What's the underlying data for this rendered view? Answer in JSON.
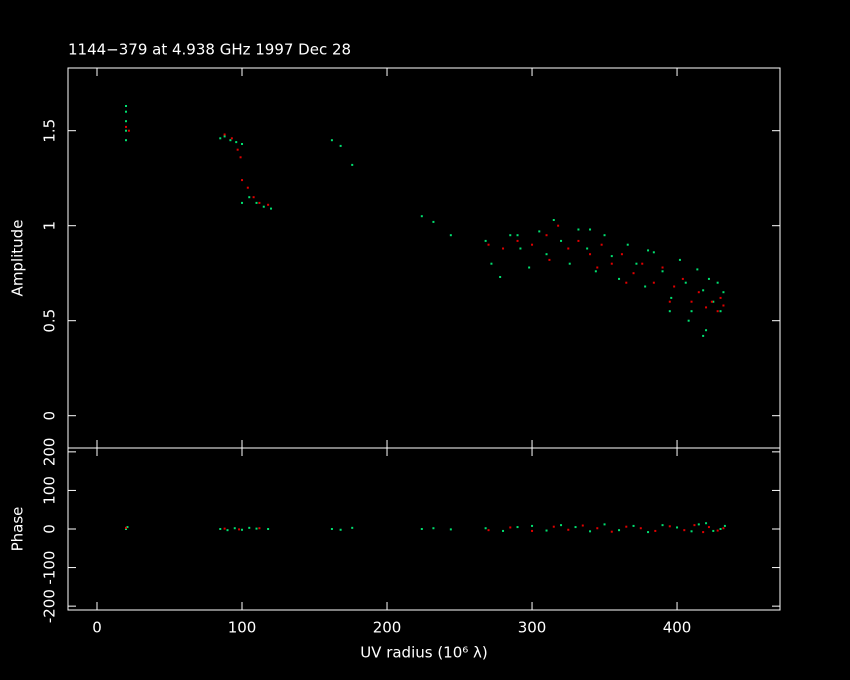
{
  "chart_data": [
    {
      "type": "scatter",
      "title": "1144−379 at 4.938 GHz 1997 Dec 28",
      "y_label": "Amplitude",
      "xlim": [
        -20,
        471
      ],
      "xticks": [
        0,
        100,
        200,
        300,
        400
      ],
      "ylim": [
        -0.17,
        1.83
      ],
      "yticks": [
        0,
        0.5,
        1,
        1.5
      ],
      "series": [
        {
          "color": "#00e070",
          "x": [
            20,
            20,
            20,
            20,
            20,
            85,
            88,
            92,
            96,
            100,
            100,
            105,
            110,
            115,
            120,
            162,
            168,
            176,
            224,
            232,
            244,
            268,
            272,
            278,
            285,
            292,
            298,
            305,
            310,
            315,
            320,
            326,
            332,
            338,
            344,
            350,
            355,
            360,
            366,
            372,
            378,
            384,
            390,
            396,
            402,
            406,
            410,
            414,
            418,
            420,
            422,
            425,
            428,
            430,
            432,
            418,
            408,
            395,
            290,
            340,
            380
          ],
          "values": [
            1.45,
            1.5,
            1.55,
            1.6,
            1.63,
            1.46,
            1.47,
            1.45,
            1.44,
            1.43,
            1.12,
            1.15,
            1.12,
            1.1,
            1.09,
            1.45,
            1.42,
            1.32,
            1.05,
            1.02,
            0.95,
            0.92,
            0.8,
            0.73,
            0.95,
            0.88,
            0.78,
            0.97,
            0.85,
            1.03,
            0.92,
            0.8,
            0.98,
            0.88,
            0.76,
            0.95,
            0.84,
            0.72,
            0.9,
            0.8,
            0.68,
            0.86,
            0.76,
            0.62,
            0.82,
            0.7,
            0.55,
            0.77,
            0.66,
            0.45,
            0.72,
            0.6,
            0.7,
            0.55,
            0.65,
            0.42,
            0.5,
            0.55,
            0.95,
            0.98,
            0.87
          ]
        },
        {
          "color": "#e00000",
          "x": [
            20,
            22,
            88,
            93,
            97,
            99,
            100,
            104,
            108,
            112,
            118,
            270,
            280,
            290,
            300,
            310,
            318,
            325,
            332,
            340,
            348,
            355,
            362,
            370,
            376,
            384,
            390,
            398,
            404,
            410,
            415,
            420,
            424,
            428,
            430,
            432,
            365,
            345,
            395,
            312
          ],
          "values": [
            1.52,
            1.5,
            1.48,
            1.46,
            1.4,
            1.36,
            1.24,
            1.2,
            1.15,
            1.12,
            1.11,
            0.9,
            0.88,
            0.92,
            0.9,
            0.95,
            1.0,
            0.88,
            0.92,
            0.85,
            0.9,
            0.8,
            0.85,
            0.75,
            0.8,
            0.7,
            0.78,
            0.68,
            0.72,
            0.6,
            0.65,
            0.57,
            0.6,
            0.55,
            0.62,
            0.58,
            0.7,
            0.78,
            0.6,
            0.82
          ]
        }
      ]
    },
    {
      "type": "scatter",
      "x_label": "UV radius  (10⁶ λ)",
      "y_label": "Phase",
      "xlim": [
        -20,
        471
      ],
      "xticks": [
        0,
        100,
        200,
        300,
        400
      ],
      "ylim": [
        -210,
        210
      ],
      "yticks": [
        -200,
        -100,
        0,
        100,
        200
      ],
      "series": [
        {
          "color": "#00e070",
          "x": [
            20,
            21,
            85,
            90,
            95,
            100,
            105,
            110,
            118,
            162,
            168,
            176,
            224,
            232,
            244,
            268,
            280,
            290,
            300,
            310,
            320,
            330,
            340,
            350,
            360,
            370,
            380,
            390,
            400,
            410,
            415,
            420,
            425,
            430,
            433
          ],
          "values": [
            0,
            5,
            0,
            -3,
            2,
            -2,
            3,
            1,
            0,
            0,
            -2,
            3,
            0,
            2,
            -1,
            2,
            -5,
            5,
            8,
            -4,
            10,
            5,
            -6,
            12,
            -3,
            8,
            -8,
            10,
            4,
            -6,
            12,
            15,
            -5,
            0,
            8
          ]
        },
        {
          "color": "#e00000",
          "x": [
            20,
            88,
            98,
            112,
            270,
            285,
            300,
            315,
            325,
            335,
            345,
            355,
            365,
            375,
            385,
            395,
            405,
            412,
            418,
            422,
            428,
            432
          ],
          "values": [
            3,
            1,
            -1,
            2,
            -3,
            4,
            -5,
            6,
            -2,
            9,
            2,
            -7,
            6,
            2,
            -5,
            7,
            -3,
            10,
            -8,
            5,
            -4,
            2
          ]
        }
      ]
    }
  ]
}
